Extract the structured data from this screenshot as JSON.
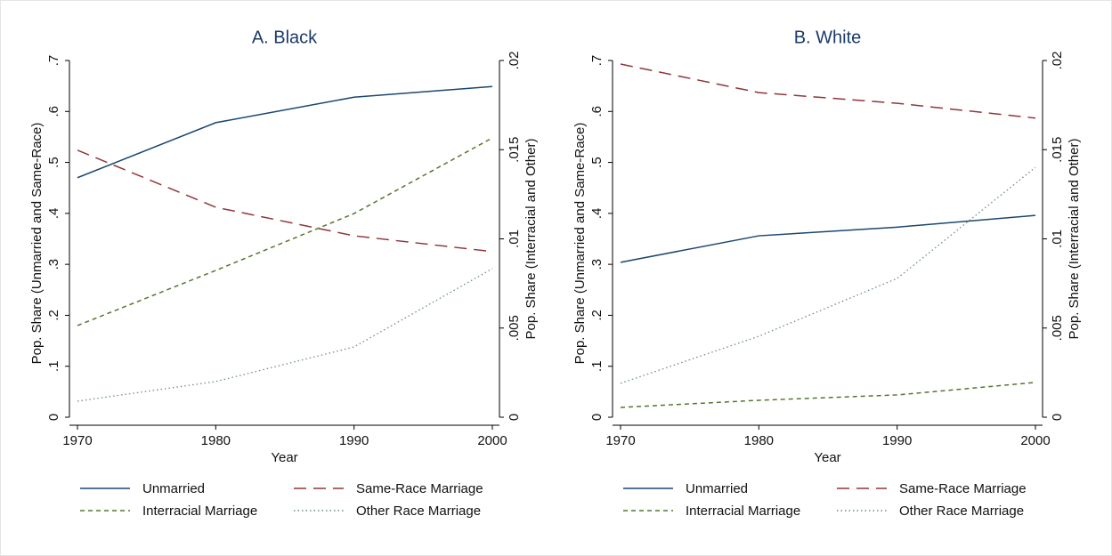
{
  "chart_data": [
    {
      "type": "line",
      "title": "A. Black",
      "xlabel": "Year",
      "ylabel": "Pop. Share (Unmarried and Same-Race)",
      "y2label": "Pop. Share (Interracial and Other)",
      "x": [
        1970,
        1980,
        1990,
        2000
      ],
      "xlim": [
        1970,
        2000
      ],
      "xticks": [
        1970,
        1980,
        1990,
        2000
      ],
      "ylim": [
        0,
        0.7
      ],
      "yticks": [
        0,
        {
          "value": 0.1,
          "label": ".1"
        },
        {
          "value": 0.2,
          "label": ".2"
        },
        {
          "value": 0.3,
          "label": ".3"
        },
        {
          "value": 0.4,
          "label": ".4"
        },
        {
          "value": 0.5,
          "label": ".5"
        },
        {
          "value": 0.6,
          "label": ".6"
        },
        {
          "value": 0.7,
          "label": ".7"
        }
      ],
      "y2lim": [
        0,
        0.02
      ],
      "y2ticks": [
        0,
        {
          "value": 0.005,
          "label": ".005"
        },
        {
          "value": 0.01,
          "label": ".01"
        },
        {
          "value": 0.015,
          "label": ".015"
        },
        {
          "value": 0.02,
          "label": ".02"
        }
      ],
      "series": [
        {
          "name": "Unmarried",
          "color": "#1a476f",
          "dash": "solid",
          "values": [
            0.47,
            0.578,
            0.628,
            0.649
          ]
        },
        {
          "name": "Same-Race Marriage",
          "color": "#90353b",
          "dash": "long",
          "values": [
            0.524,
            0.412,
            0.356,
            0.325
          ]
        },
        {
          "name": "Interracial Marriage",
          "color": "#55752f",
          "dash": "short",
          "axis": "y2",
          "values": [
            0.00514,
            0.00823,
            0.01142,
            0.01566
          ]
        },
        {
          "name": "Other Race Marriage",
          "color": "#6e8e84",
          "dash": "dot",
          "axis": "y2",
          "values": [
            0.0009,
            0.002,
            0.00394,
            0.00833
          ]
        }
      ]
    },
    {
      "type": "line",
      "title": "B. White",
      "xlabel": "Year",
      "ylabel": "Pop. Share (Unmarried and Same-Race)",
      "y2label": "Pop. Share (Interracial and Other)",
      "x": [
        1970,
        1980,
        1990,
        2000
      ],
      "xlim": [
        1970,
        2000
      ],
      "xticks": [
        1970,
        1980,
        1990,
        2000
      ],
      "ylim": [
        0,
        0.7
      ],
      "yticks": [
        0,
        {
          "value": 0.1,
          "label": ".1"
        },
        {
          "value": 0.2,
          "label": ".2"
        },
        {
          "value": 0.3,
          "label": ".3"
        },
        {
          "value": 0.4,
          "label": ".4"
        },
        {
          "value": 0.5,
          "label": ".5"
        },
        {
          "value": 0.6,
          "label": ".6"
        },
        {
          "value": 0.7,
          "label": ".7"
        }
      ],
      "y2lim": [
        0,
        0.02
      ],
      "y2ticks": [
        0,
        {
          "value": 0.005,
          "label": ".005"
        },
        {
          "value": 0.01,
          "label": ".01"
        },
        {
          "value": 0.015,
          "label": ".015"
        },
        {
          "value": 0.02,
          "label": ".02"
        }
      ],
      "series": [
        {
          "name": "Unmarried",
          "color": "#1a476f",
          "dash": "solid",
          "values": [
            0.304,
            0.356,
            0.373,
            0.396
          ]
        },
        {
          "name": "Same-Race Marriage",
          "color": "#90353b",
          "dash": "long",
          "values": [
            0.693,
            0.637,
            0.616,
            0.587
          ]
        },
        {
          "name": "Interracial Marriage",
          "color": "#55752f",
          "dash": "short",
          "axis": "y2",
          "values": [
            0.00055,
            0.00095,
            0.00125,
            0.00195
          ]
        },
        {
          "name": "Other Race Marriage",
          "color": "#6e8e84",
          "dash": "dot",
          "axis": "y2",
          "values": [
            0.0019,
            0.00454,
            0.00778,
            0.01401
          ]
        }
      ]
    }
  ]
}
